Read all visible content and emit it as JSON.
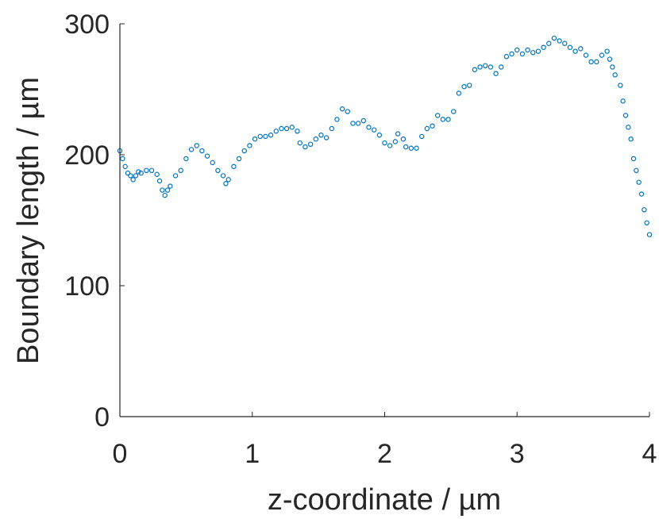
{
  "chart_data": {
    "type": "scatter",
    "xlabel": "z-coordinate / µm",
    "ylabel": "Boundary length / µm",
    "xlim": [
      0,
      4
    ],
    "ylim": [
      0,
      300
    ],
    "xticks": [
      "0",
      "1",
      "2",
      "3",
      "4"
    ],
    "yticks": [
      "0",
      "100",
      "200",
      "300"
    ],
    "grid": false,
    "marker_color": "#0072BD",
    "marker": "open-circle",
    "x": [
      0,
      0.02,
      0.04,
      0.06,
      0.08,
      0.1,
      0.12,
      0.14,
      0.16,
      0.2,
      0.24,
      0.28,
      0.3,
      0.32,
      0.34,
      0.36,
      0.38,
      0.42,
      0.46,
      0.5,
      0.54,
      0.58,
      0.62,
      0.66,
      0.7,
      0.74,
      0.78,
      0.8,
      0.82,
      0.86,
      0.9,
      0.94,
      0.98,
      1.02,
      1.06,
      1.1,
      1.14,
      1.18,
      1.22,
      1.26,
      1.3,
      1.34,
      1.36,
      1.4,
      1.44,
      1.48,
      1.52,
      1.56,
      1.6,
      1.64,
      1.68,
      1.72,
      1.76,
      1.8,
      1.84,
      1.88,
      1.92,
      1.96,
      2.0,
      2.04,
      2.08,
      2.1,
      2.14,
      2.16,
      2.2,
      2.24,
      2.28,
      2.32,
      2.36,
      2.4,
      2.44,
      2.48,
      2.52,
      2.56,
      2.6,
      2.64,
      2.68,
      2.72,
      2.76,
      2.8,
      2.84,
      2.88,
      2.92,
      2.96,
      3.0,
      3.04,
      3.08,
      3.12,
      3.16,
      3.2,
      3.24,
      3.28,
      3.32,
      3.36,
      3.4,
      3.44,
      3.48,
      3.52,
      3.56,
      3.6,
      3.64,
      3.68,
      3.7,
      3.72,
      3.74,
      3.78,
      3.8,
      3.82,
      3.84,
      3.86,
      3.88,
      3.9,
      3.92,
      3.94,
      3.96,
      3.98,
      4.0
    ],
    "y": [
      203,
      197,
      191,
      186,
      184,
      181,
      184,
      187,
      186,
      188,
      188,
      185,
      180,
      173,
      169,
      173,
      176,
      184,
      188,
      197,
      204,
      207,
      203,
      199,
      194,
      188,
      184,
      178,
      181,
      191,
      197,
      203,
      207,
      212,
      214,
      214,
      215,
      218,
      220,
      220,
      221,
      218,
      209,
      206,
      208,
      212,
      215,
      213,
      220,
      227,
      235,
      233,
      224,
      224,
      226,
      221,
      219,
      215,
      209,
      207,
      210,
      216,
      212,
      206,
      205,
      205,
      214,
      220,
      222,
      230,
      227,
      227,
      233,
      247,
      252,
      253,
      265,
      267,
      268,
      267,
      262,
      267,
      275,
      277,
      280,
      277,
      280,
      278,
      279,
      282,
      285,
      289,
      287,
      285,
      282,
      279,
      281,
      276,
      271,
      271,
      276,
      279,
      273,
      267,
      261,
      253,
      241,
      230,
      221,
      212,
      197,
      188,
      179,
      170,
      158,
      148,
      139
    ]
  }
}
